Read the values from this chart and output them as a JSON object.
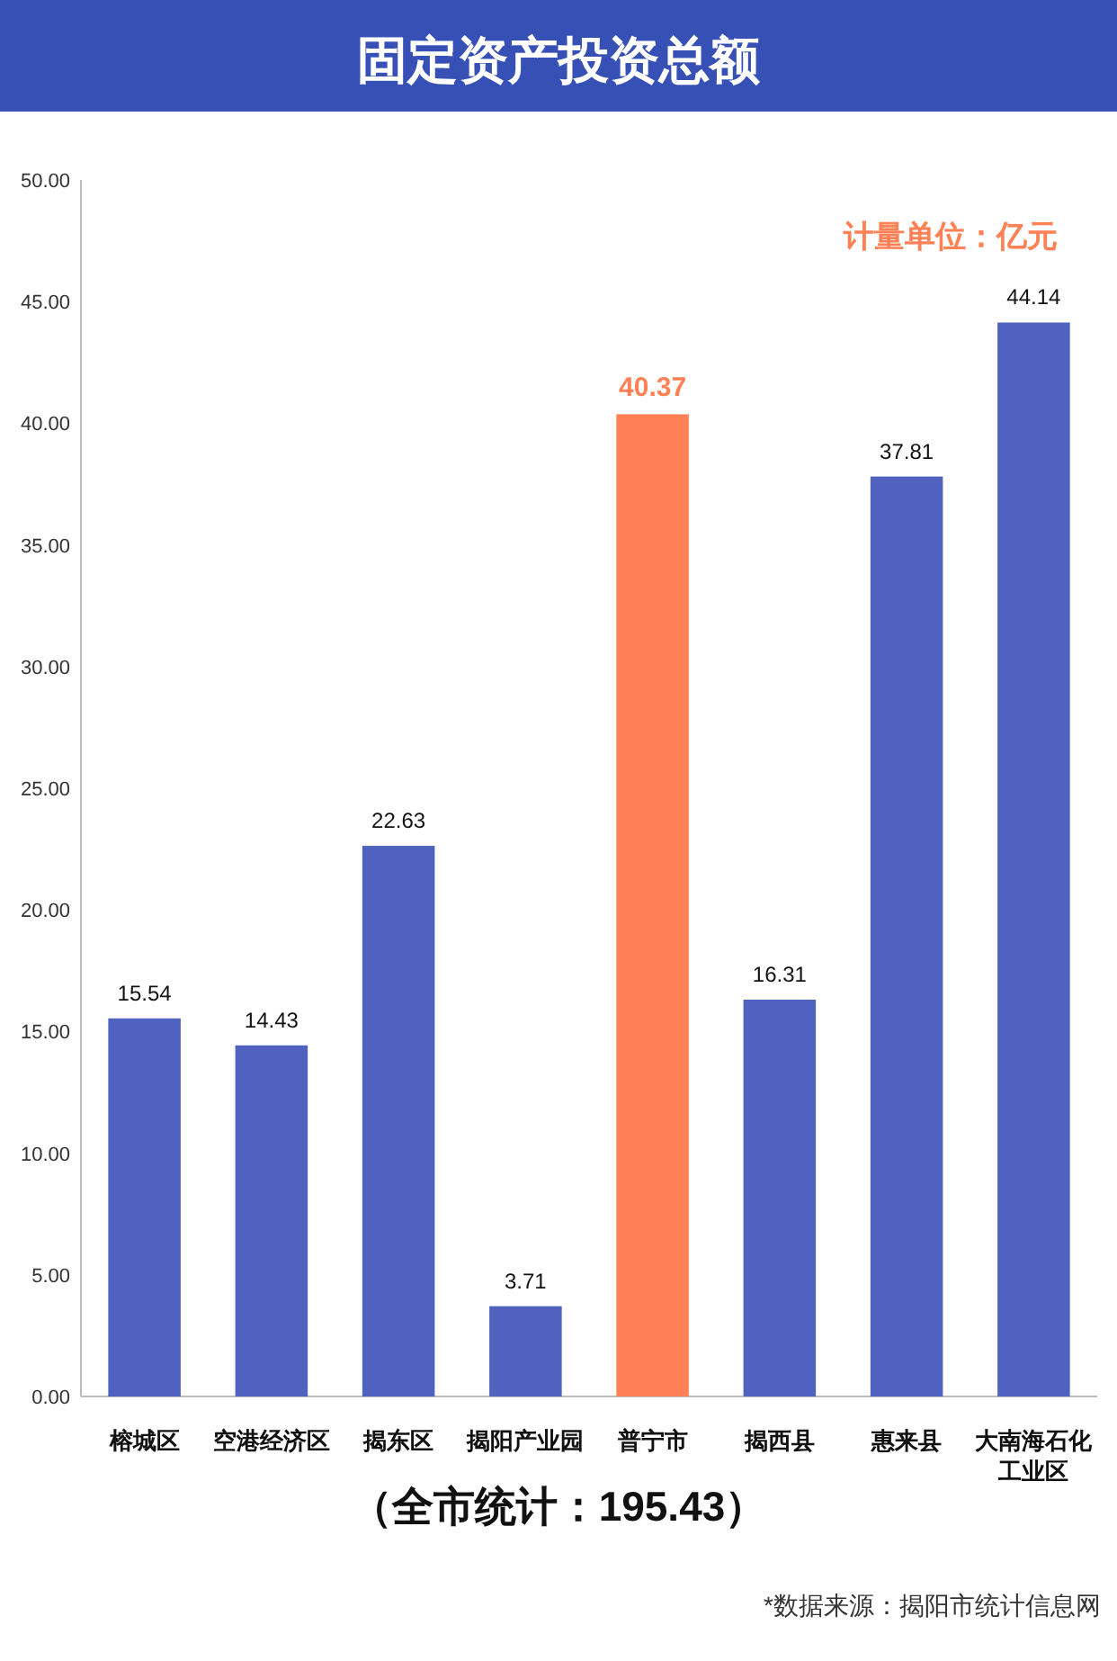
{
  "chart_data": {
    "type": "bar",
    "title": "固定资产投资总额",
    "categories": [
      "榕城区",
      "空港经济区",
      "揭东区",
      "揭阳产业园",
      "普宁市",
      "揭西县",
      "惠来县",
      "大南海石化工业区"
    ],
    "values": [
      15.54,
      14.43,
      22.63,
      3.71,
      40.37,
      16.31,
      37.81,
      44.14
    ],
    "colors": [
      "#4f62bd",
      "#4f62bd",
      "#4f62bd",
      "#4f62bd",
      "#ff8155",
      "#4f62bd",
      "#4f62bd",
      "#4f62bd"
    ],
    "ylim": [
      0,
      50
    ],
    "yticks": [
      {
        "value": 0,
        "label": "0.00"
      },
      {
        "value": 5,
        "label": "5.00"
      },
      {
        "value": 10,
        "label": "10.00"
      },
      {
        "value": 15,
        "label": "15.00"
      },
      {
        "value": 20,
        "label": "20.00"
      },
      {
        "value": 25,
        "label": "25.00"
      },
      {
        "value": 30,
        "label": "30.00"
      },
      {
        "value": 35,
        "label": "35.00"
      },
      {
        "value": 40,
        "label": "40.00"
      },
      {
        "value": 45,
        "label": "45.00"
      },
      {
        "value": 50,
        "label": "50.00"
      }
    ],
    "data_labels": true,
    "grid": false,
    "annotations": [
      "计量单位：亿元",
      "（全市统计：195.43）",
      "*数据来源：揭阳市统计信息网"
    ]
  }
}
